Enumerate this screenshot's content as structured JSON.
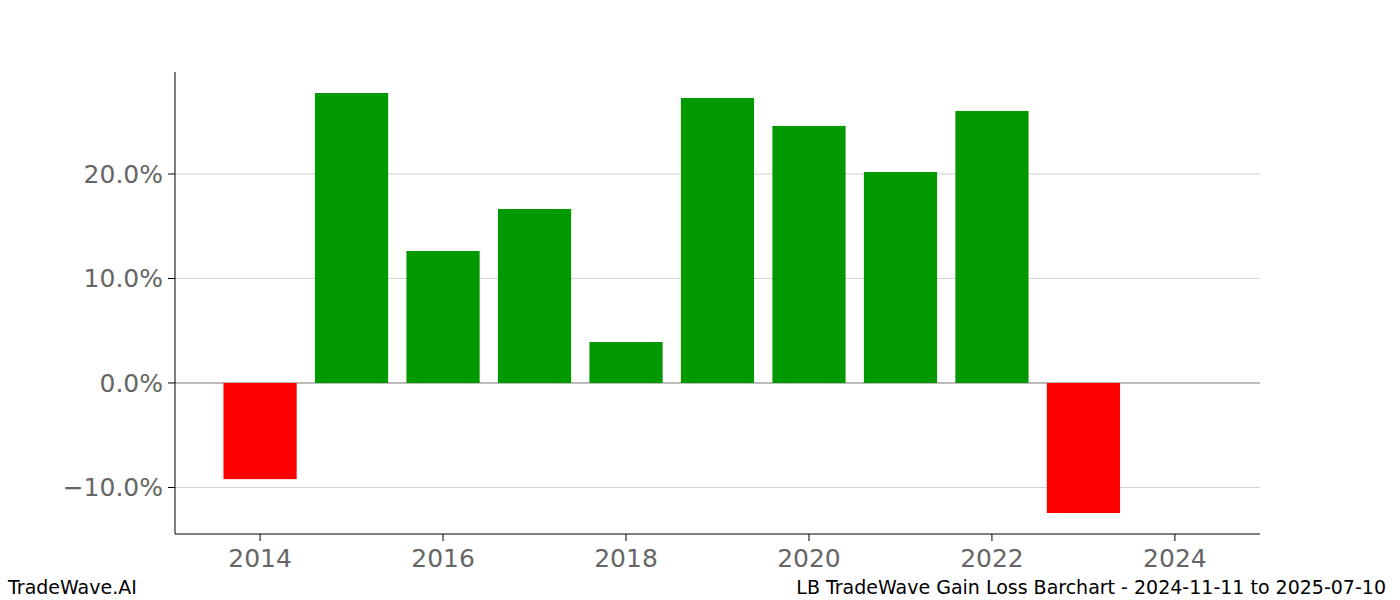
{
  "chart_data": {
    "type": "bar",
    "title": "LB TradeWave Gain Loss Barchart - 2024-11-11 to 2025-07-10",
    "annotations": [
      "TradeWave.AI"
    ],
    "x": [
      2014,
      2015,
      2016,
      2017,
      2018,
      2019,
      2020,
      2021,
      2022,
      2023
    ],
    "values": [
      -9.2,
      27.75,
      12.63,
      16.65,
      3.92,
      27.27,
      24.6,
      20.19,
      26.03,
      -12.44
    ],
    "colors": [
      "#ff0000",
      "#009900",
      "#009900",
      "#009900",
      "#009900",
      "#009900",
      "#009900",
      "#009900",
      "#009900",
      "#ff0000"
    ],
    "xlim": [
      2013.07,
      2024.93
    ],
    "xticks": [
      2014,
      2016,
      2018,
      2020,
      2022,
      2024
    ],
    "ylim": [
      -14.45,
      29.76
    ],
    "yticks": [
      {
        "value": -10,
        "label": "−10.0%"
      },
      {
        "value": 0,
        "label": "0.0%"
      },
      {
        "value": 10,
        "label": "10.0%"
      },
      {
        "value": 20,
        "label": "20.0%"
      }
    ],
    "grid": true
  }
}
